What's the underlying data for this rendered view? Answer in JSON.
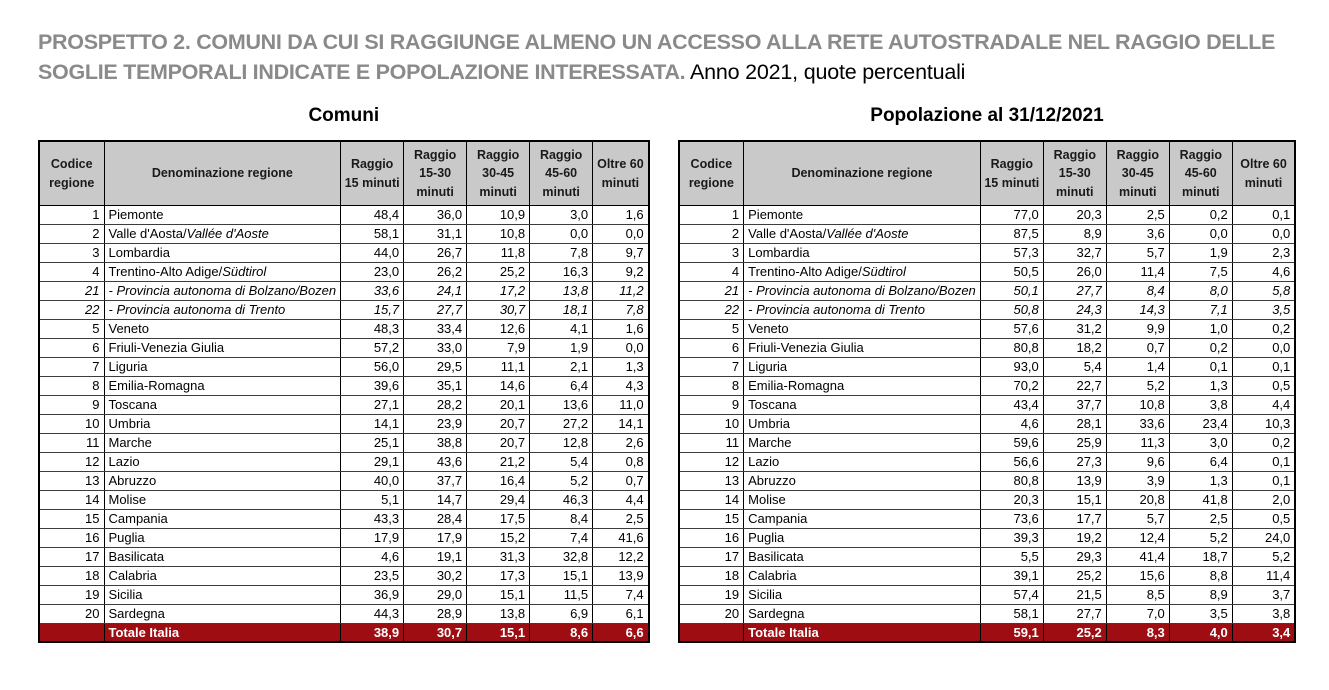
{
  "page_title": {
    "main": "PROSPETTO 2. COMUNI DA CUI SI RAGGIUNGE ALMENO UN ACCESSO ALLA RETE AUTOSTRADALE NEL RAGGIO DELLE SOGLIE TEMPORALI INDICATE E POPOLAZIONE INTERESSATA.",
    "subtitle": " Anno 2021, quote percentuali"
  },
  "colors": {
    "title_gray": "#8a8a8a",
    "header_gray": "#c9c9c9",
    "total_red": "#9e0d12",
    "total_text": "#ffffff"
  },
  "tables": [
    {
      "caption": "Comuni",
      "headers": [
        "Codice regione",
        "Denominazione regione",
        "Raggio 15 minuti",
        "Raggio 15-30 minuti",
        "Raggio 30-45 minuti",
        "Raggio 45-60 minuti",
        "Oltre 60 minuti"
      ],
      "rows": [
        {
          "code": "1",
          "name": "Piemonte",
          "name_italic": "",
          "italic": false,
          "values": [
            "48,4",
            "36,0",
            "10,9",
            "3,0",
            "1,6"
          ]
        },
        {
          "code": "2",
          "name": "Valle d'Aosta/",
          "name_italic": "Vallée d'Aoste",
          "italic": false,
          "values": [
            "58,1",
            "31,1",
            "10,8",
            "0,0",
            "0,0"
          ]
        },
        {
          "code": "3",
          "name": "Lombardia",
          "name_italic": "",
          "italic": false,
          "values": [
            "44,0",
            "26,7",
            "11,8",
            "7,8",
            "9,7"
          ]
        },
        {
          "code": "4",
          "name": "Trentino-Alto Adige/",
          "name_italic": "Südtirol",
          "italic": false,
          "values": [
            "23,0",
            "26,2",
            "25,2",
            "16,3",
            "9,2"
          ]
        },
        {
          "code": "21",
          "name": " - Provincia autonoma di Bolzano/Bozen",
          "name_italic": "",
          "italic": true,
          "values": [
            "33,6",
            "24,1",
            "17,2",
            "13,8",
            "11,2"
          ]
        },
        {
          "code": "22",
          "name": " - Provincia autonoma di Trento",
          "name_italic": "",
          "italic": true,
          "values": [
            "15,7",
            "27,7",
            "30,7",
            "18,1",
            "7,8"
          ]
        },
        {
          "code": "5",
          "name": "Veneto",
          "name_italic": "",
          "italic": false,
          "values": [
            "48,3",
            "33,4",
            "12,6",
            "4,1",
            "1,6"
          ]
        },
        {
          "code": "6",
          "name": "Friuli-Venezia Giulia",
          "name_italic": "",
          "italic": false,
          "values": [
            "57,2",
            "33,0",
            "7,9",
            "1,9",
            "0,0"
          ]
        },
        {
          "code": "7",
          "name": "Liguria",
          "name_italic": "",
          "italic": false,
          "values": [
            "56,0",
            "29,5",
            "11,1",
            "2,1",
            "1,3"
          ]
        },
        {
          "code": "8",
          "name": "Emilia-Romagna",
          "name_italic": "",
          "italic": false,
          "values": [
            "39,6",
            "35,1",
            "14,6",
            "6,4",
            "4,3"
          ]
        },
        {
          "code": "9",
          "name": "Toscana",
          "name_italic": "",
          "italic": false,
          "values": [
            "27,1",
            "28,2",
            "20,1",
            "13,6",
            "11,0"
          ]
        },
        {
          "code": "10",
          "name": "Umbria",
          "name_italic": "",
          "italic": false,
          "values": [
            "14,1",
            "23,9",
            "20,7",
            "27,2",
            "14,1"
          ]
        },
        {
          "code": "11",
          "name": "Marche",
          "name_italic": "",
          "italic": false,
          "values": [
            "25,1",
            "38,8",
            "20,7",
            "12,8",
            "2,6"
          ]
        },
        {
          "code": "12",
          "name": "Lazio",
          "name_italic": "",
          "italic": false,
          "values": [
            "29,1",
            "43,6",
            "21,2",
            "5,4",
            "0,8"
          ]
        },
        {
          "code": "13",
          "name": "Abruzzo",
          "name_italic": "",
          "italic": false,
          "values": [
            "40,0",
            "37,7",
            "16,4",
            "5,2",
            "0,7"
          ]
        },
        {
          "code": "14",
          "name": "Molise",
          "name_italic": "",
          "italic": false,
          "values": [
            "5,1",
            "14,7",
            "29,4",
            "46,3",
            "4,4"
          ]
        },
        {
          "code": "15",
          "name": "Campania",
          "name_italic": "",
          "italic": false,
          "values": [
            "43,3",
            "28,4",
            "17,5",
            "8,4",
            "2,5"
          ]
        },
        {
          "code": "16",
          "name": "Puglia",
          "name_italic": "",
          "italic": false,
          "values": [
            "17,9",
            "17,9",
            "15,2",
            "7,4",
            "41,6"
          ]
        },
        {
          "code": "17",
          "name": "Basilicata",
          "name_italic": "",
          "italic": false,
          "values": [
            "4,6",
            "19,1",
            "31,3",
            "32,8",
            "12,2"
          ]
        },
        {
          "code": "18",
          "name": "Calabria",
          "name_italic": "",
          "italic": false,
          "values": [
            "23,5",
            "30,2",
            "17,3",
            "15,1",
            "13,9"
          ]
        },
        {
          "code": "19",
          "name": "Sicilia",
          "name_italic": "",
          "italic": false,
          "values": [
            "36,9",
            "29,0",
            "15,1",
            "11,5",
            "7,4"
          ]
        },
        {
          "code": "20",
          "name": "Sardegna",
          "name_italic": "",
          "italic": false,
          "values": [
            "44,3",
            "28,9",
            "13,8",
            "6,9",
            "6,1"
          ]
        }
      ],
      "total": {
        "label": "Totale Italia",
        "values": [
          "38,9",
          "30,7",
          "15,1",
          "8,6",
          "6,6"
        ]
      }
    },
    {
      "caption": "Popolazione al 31/12/2021",
      "headers": [
        "Codice regione",
        "Denominazione regione",
        "Raggio 15 minuti",
        "Raggio 15-30 minuti",
        "Raggio 30-45 minuti",
        "Raggio 45-60 minuti",
        "Oltre 60 minuti"
      ],
      "rows": [
        {
          "code": "1",
          "name": "Piemonte",
          "name_italic": "",
          "italic": false,
          "values": [
            "77,0",
            "20,3",
            "2,5",
            "0,2",
            "0,1"
          ]
        },
        {
          "code": "2",
          "name": "Valle d'Aosta/",
          "name_italic": "Vallée d'Aoste",
          "italic": false,
          "values": [
            "87,5",
            "8,9",
            "3,6",
            "0,0",
            "0,0"
          ]
        },
        {
          "code": "3",
          "name": "Lombardia",
          "name_italic": "",
          "italic": false,
          "values": [
            "57,3",
            "32,7",
            "5,7",
            "1,9",
            "2,3"
          ]
        },
        {
          "code": "4",
          "name": "Trentino-Alto Adige/",
          "name_italic": "Südtirol",
          "italic": false,
          "values": [
            "50,5",
            "26,0",
            "11,4",
            "7,5",
            "4,6"
          ]
        },
        {
          "code": "21",
          "name": " - Provincia autonoma di Bolzano/Bozen",
          "name_italic": "",
          "italic": true,
          "values": [
            "50,1",
            "27,7",
            "8,4",
            "8,0",
            "5,8"
          ]
        },
        {
          "code": "22",
          "name": " - Provincia autonoma di Trento",
          "name_italic": "",
          "italic": true,
          "values": [
            "50,8",
            "24,3",
            "14,3",
            "7,1",
            "3,5"
          ]
        },
        {
          "code": "5",
          "name": "Veneto",
          "name_italic": "",
          "italic": false,
          "values": [
            "57,6",
            "31,2",
            "9,9",
            "1,0",
            "0,2"
          ]
        },
        {
          "code": "6",
          "name": "Friuli-Venezia Giulia",
          "name_italic": "",
          "italic": false,
          "values": [
            "80,8",
            "18,2",
            "0,7",
            "0,2",
            "0,0"
          ]
        },
        {
          "code": "7",
          "name": "Liguria",
          "name_italic": "",
          "italic": false,
          "values": [
            "93,0",
            "5,4",
            "1,4",
            "0,1",
            "0,1"
          ]
        },
        {
          "code": "8",
          "name": "Emilia-Romagna",
          "name_italic": "",
          "italic": false,
          "values": [
            "70,2",
            "22,7",
            "5,2",
            "1,3",
            "0,5"
          ]
        },
        {
          "code": "9",
          "name": "Toscana",
          "name_italic": "",
          "italic": false,
          "values": [
            "43,4",
            "37,7",
            "10,8",
            "3,8",
            "4,4"
          ]
        },
        {
          "code": "10",
          "name": "Umbria",
          "name_italic": "",
          "italic": false,
          "values": [
            "4,6",
            "28,1",
            "33,6",
            "23,4",
            "10,3"
          ]
        },
        {
          "code": "11",
          "name": "Marche",
          "name_italic": "",
          "italic": false,
          "values": [
            "59,6",
            "25,9",
            "11,3",
            "3,0",
            "0,2"
          ]
        },
        {
          "code": "12",
          "name": "Lazio",
          "name_italic": "",
          "italic": false,
          "values": [
            "56,6",
            "27,3",
            "9,6",
            "6,4",
            "0,1"
          ]
        },
        {
          "code": "13",
          "name": "Abruzzo",
          "name_italic": "",
          "italic": false,
          "values": [
            "80,8",
            "13,9",
            "3,9",
            "1,3",
            "0,1"
          ]
        },
        {
          "code": "14",
          "name": "Molise",
          "name_italic": "",
          "italic": false,
          "values": [
            "20,3",
            "15,1",
            "20,8",
            "41,8",
            "2,0"
          ]
        },
        {
          "code": "15",
          "name": "Campania",
          "name_italic": "",
          "italic": false,
          "values": [
            "73,6",
            "17,7",
            "5,7",
            "2,5",
            "0,5"
          ]
        },
        {
          "code": "16",
          "name": "Puglia",
          "name_italic": "",
          "italic": false,
          "values": [
            "39,3",
            "19,2",
            "12,4",
            "5,2",
            "24,0"
          ]
        },
        {
          "code": "17",
          "name": "Basilicata",
          "name_italic": "",
          "italic": false,
          "values": [
            "5,5",
            "29,3",
            "41,4",
            "18,7",
            "5,2"
          ]
        },
        {
          "code": "18",
          "name": "Calabria",
          "name_italic": "",
          "italic": false,
          "values": [
            "39,1",
            "25,2",
            "15,6",
            "8,8",
            "11,4"
          ]
        },
        {
          "code": "19",
          "name": "Sicilia",
          "name_italic": "",
          "italic": false,
          "values": [
            "57,4",
            "21,5",
            "8,5",
            "8,9",
            "3,7"
          ]
        },
        {
          "code": "20",
          "name": "Sardegna",
          "name_italic": "",
          "italic": false,
          "values": [
            "58,1",
            "27,7",
            "7,0",
            "3,5",
            "3,8"
          ]
        }
      ],
      "total": {
        "label": "Totale Italia",
        "values": [
          "59,1",
          "25,2",
          "8,3",
          "4,0",
          "3,4"
        ]
      }
    }
  ]
}
